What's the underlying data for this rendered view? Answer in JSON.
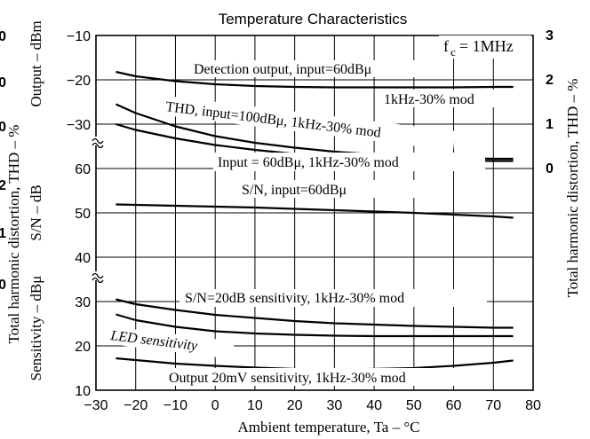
{
  "chart_data": {
    "type": "line",
    "title": "Temperature Characteristics",
    "xlabel": "Ambient temperature, Ta  –  °C",
    "xlim": [
      -30,
      80
    ],
    "x_ticks": [
      -30,
      -20,
      -10,
      0,
      10,
      20,
      30,
      40,
      50,
      60,
      70,
      80
    ],
    "grid": true,
    "condition_label": "f_c = 1MHz",
    "left_axis_labels": {
      "outer": "Total harmonic distortion, THD  –  %",
      "sensitivity": "Sensitivity  –  dBμ",
      "sn": "S/N  –  dB",
      "output": "Output  –  dBm"
    },
    "right_axis_label": "Total harmonic distortion, THD  –  %",
    "left_scales": {
      "output_ticks": [
        -10,
        -20,
        -30
      ],
      "sn_ticks": [
        60,
        50,
        40
      ],
      "sensitivity_ticks": [
        30,
        20,
        10
      ],
      "thd_outer_ticks": [
        "0",
        "0",
        "0",
        "2",
        "1",
        "0"
      ]
    },
    "right_ticks": [
      "3",
      "2",
      "1",
      "0"
    ],
    "series": [
      {
        "label": "Detection output, input=60dBμ",
        "sublabel": "1kHz-30% mod",
        "axis": "Output (dBm)",
        "x": [
          -25,
          -20,
          -10,
          0,
          10,
          20,
          30,
          40,
          50,
          60,
          70,
          75
        ],
        "y": [
          -18.2,
          -19.2,
          -20.3,
          -21.0,
          -21.4,
          -21.6,
          -21.7,
          -21.7,
          -21.7,
          -21.7,
          -21.6,
          -21.6
        ]
      },
      {
        "label": "THD, input=100dBμ, 1kHz-30% mod",
        "axis": "THD (%)",
        "x": [
          -25,
          -20,
          -10,
          0,
          10,
          20,
          30,
          40,
          50,
          60,
          70,
          75
        ],
        "y": [
          1.45,
          1.25,
          0.95,
          0.73,
          0.58,
          0.47,
          0.38,
          0.32,
          0.27,
          0.24,
          0.22,
          0.22
        ]
      },
      {
        "label": "Input = 60dBμ, 1kHz-30% mod",
        "axis": "THD (%)",
        "x": [
          -25,
          -20,
          -10,
          0,
          10,
          20,
          30,
          40,
          50,
          60,
          70,
          75
        ],
        "y": [
          1.0,
          0.87,
          0.68,
          0.53,
          0.42,
          0.33,
          0.27,
          0.23,
          0.2,
          0.18,
          0.17,
          0.17
        ]
      },
      {
        "label": "S/N, input=60dBμ",
        "axis": "S/N (dB)",
        "x": [
          -25,
          -10,
          0,
          10,
          20,
          30,
          40,
          50,
          60,
          70,
          75
        ],
        "y": [
          51.9,
          51.6,
          51.4,
          51.2,
          50.9,
          50.6,
          50.3,
          50.0,
          49.6,
          49.2,
          48.9
        ]
      },
      {
        "label": "S/N=20dB sensitivity, 1kHz-30% mod",
        "axis": "Sensitivity (dBμ)",
        "x": [
          -25,
          -20,
          -10,
          0,
          10,
          20,
          30,
          40,
          50,
          60,
          70,
          75
        ],
        "y": [
          30.5,
          29.4,
          28.1,
          27.0,
          26.3,
          25.6,
          25.1,
          24.8,
          24.5,
          24.3,
          24.1,
          24.1
        ]
      },
      {
        "label": "LED sensitivity",
        "axis": "Sensitivity (dBμ)",
        "x": [
          -25,
          -20,
          -10,
          0,
          10,
          20,
          30,
          40,
          50,
          60,
          70,
          75
        ],
        "y": [
          27.1,
          25.8,
          24.3,
          23.3,
          22.8,
          22.5,
          22.3,
          22.2,
          22.2,
          22.2,
          22.2,
          22.2
        ]
      },
      {
        "label": "Output 20mV sensitivity, 1kHz-30% mod",
        "axis": "Sensitivity (dBμ)",
        "x": [
          -25,
          -20,
          -10,
          0,
          10,
          20,
          30,
          40,
          50,
          60,
          70,
          75
        ],
        "y": [
          17.2,
          16.8,
          16.0,
          15.5,
          15.1,
          14.8,
          14.7,
          14.8,
          15.0,
          15.5,
          16.2,
          16.7
        ]
      }
    ]
  }
}
